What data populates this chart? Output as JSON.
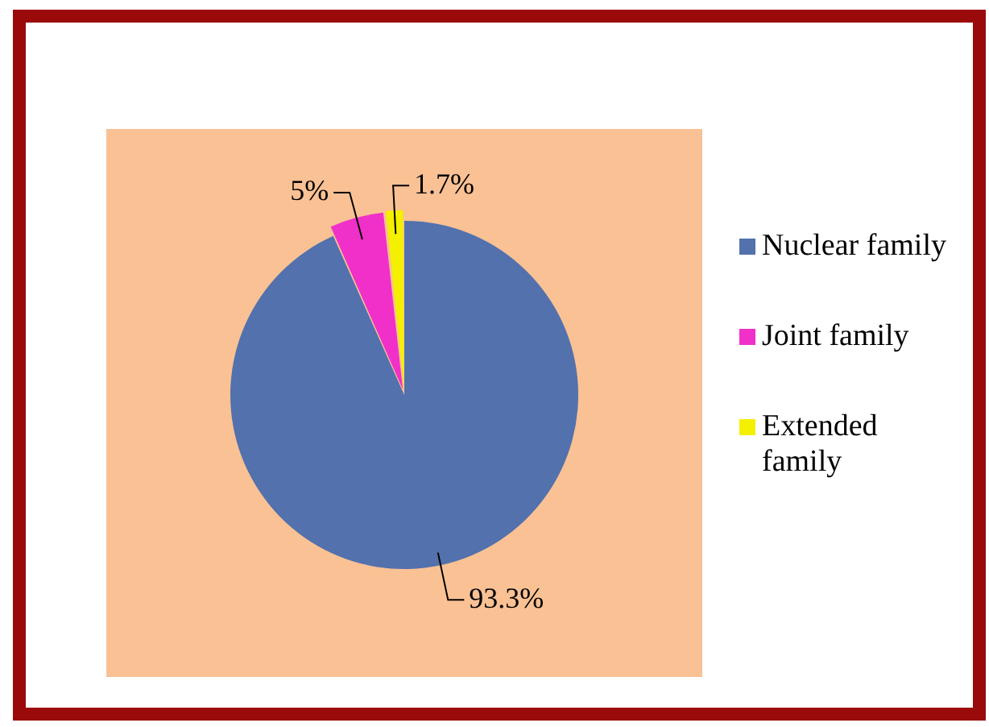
{
  "chart_data": {
    "type": "pie",
    "categories": [
      "Nuclear family",
      "Joint family",
      "Extended family"
    ],
    "values": [
      93.3,
      5,
      1.7
    ],
    "colors": [
      "#5271ad",
      "#f030c8",
      "#f4f000"
    ],
    "value_labels": [
      "93.3%",
      "5%",
      "1.7%"
    ],
    "legend": "right"
  }
}
